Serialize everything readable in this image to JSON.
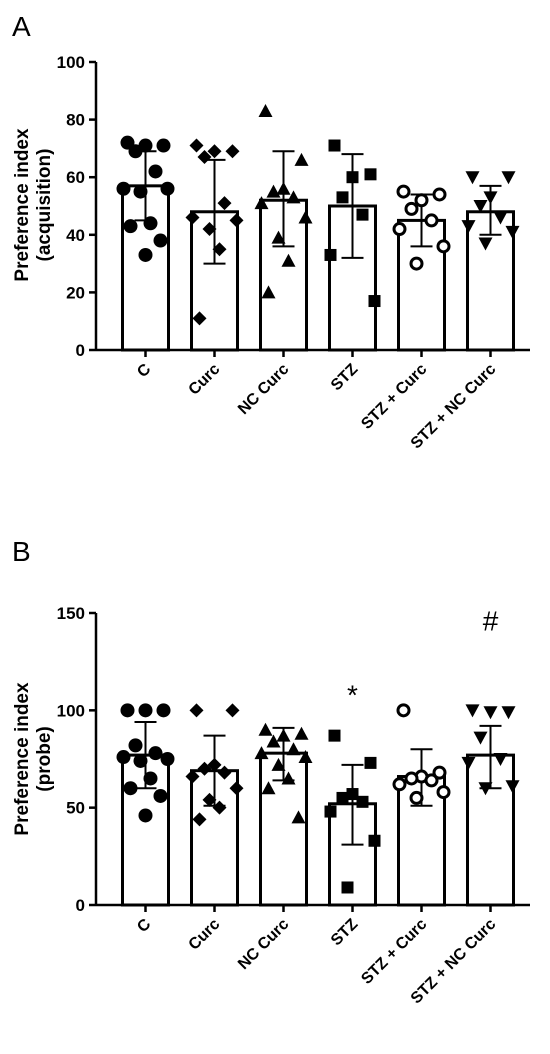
{
  "chart_data": [
    {
      "type": "bar",
      "panel_label": "A",
      "ylabel_lines": [
        "Preference index",
        "(acquisition)"
      ],
      "ylim": [
        0,
        100
      ],
      "yticks": [
        0,
        20,
        40,
        60,
        80,
        100
      ],
      "categories": [
        "C",
        "Curc",
        "NC Curc",
        "STZ",
        "STZ + Curc",
        "STZ + NC Curc"
      ],
      "means": [
        57,
        48,
        52,
        50,
        45,
        48
      ],
      "sd_low": [
        45,
        30,
        36,
        32,
        36,
        40
      ],
      "sd_high": [
        69,
        66,
        69,
        68,
        54,
        57
      ],
      "markers": [
        "circle",
        "diamond",
        "triangle-up",
        "square",
        "circle-open",
        "triangle-down"
      ],
      "points": [
        [
          72,
          71,
          71,
          69,
          62,
          56,
          56,
          55,
          44,
          43,
          38,
          33
        ],
        [
          71,
          69,
          69,
          67,
          51,
          46,
          45,
          42,
          35,
          11
        ],
        [
          83,
          66,
          56,
          55,
          53,
          51,
          46,
          39,
          31,
          20
        ],
        [
          71,
          61,
          60,
          53,
          47,
          33,
          17
        ],
        [
          55,
          54,
          52,
          49,
          45,
          42,
          36,
          30
        ],
        [
          60,
          60,
          53,
          50,
          46,
          43,
          41,
          37
        ]
      ],
      "annotations": []
    },
    {
      "type": "bar",
      "panel_label": "B",
      "ylabel_lines": [
        "Preference index",
        "(probe)"
      ],
      "ylim": [
        0,
        150
      ],
      "yticks": [
        0,
        50,
        100,
        150
      ],
      "categories": [
        "C",
        "Curc",
        "NC Curc",
        "STZ",
        "STZ + Curc",
        "STZ + NC Curc"
      ],
      "means": [
        77,
        69,
        78,
        52,
        66,
        77
      ],
      "sd_low": [
        60,
        51,
        64,
        31,
        51,
        60
      ],
      "sd_high": [
        94,
        87,
        91,
        72,
        80,
        92
      ],
      "markers": [
        "circle",
        "diamond",
        "triangle-up",
        "square",
        "circle-open",
        "triangle-down"
      ],
      "points": [
        [
          100,
          100,
          100,
          82,
          78,
          76,
          75,
          74,
          65,
          60,
          56,
          46
        ],
        [
          100,
          100,
          72,
          70,
          68,
          66,
          60,
          54,
          50,
          44
        ],
        [
          90,
          88,
          87,
          84,
          80,
          78,
          76,
          72,
          65,
          60,
          45
        ],
        [
          87,
          73,
          57,
          55,
          53,
          48,
          33,
          9
        ],
        [
          100,
          68,
          66,
          65,
          64,
          62,
          58,
          55
        ],
        [
          100,
          99,
          99,
          86,
          75,
          73,
          61,
          60
        ]
      ],
      "annotations": [
        {
          "text": "*",
          "category": 3,
          "y": 103
        },
        {
          "text": "#",
          "category": 5,
          "y": 141
        }
      ]
    }
  ]
}
